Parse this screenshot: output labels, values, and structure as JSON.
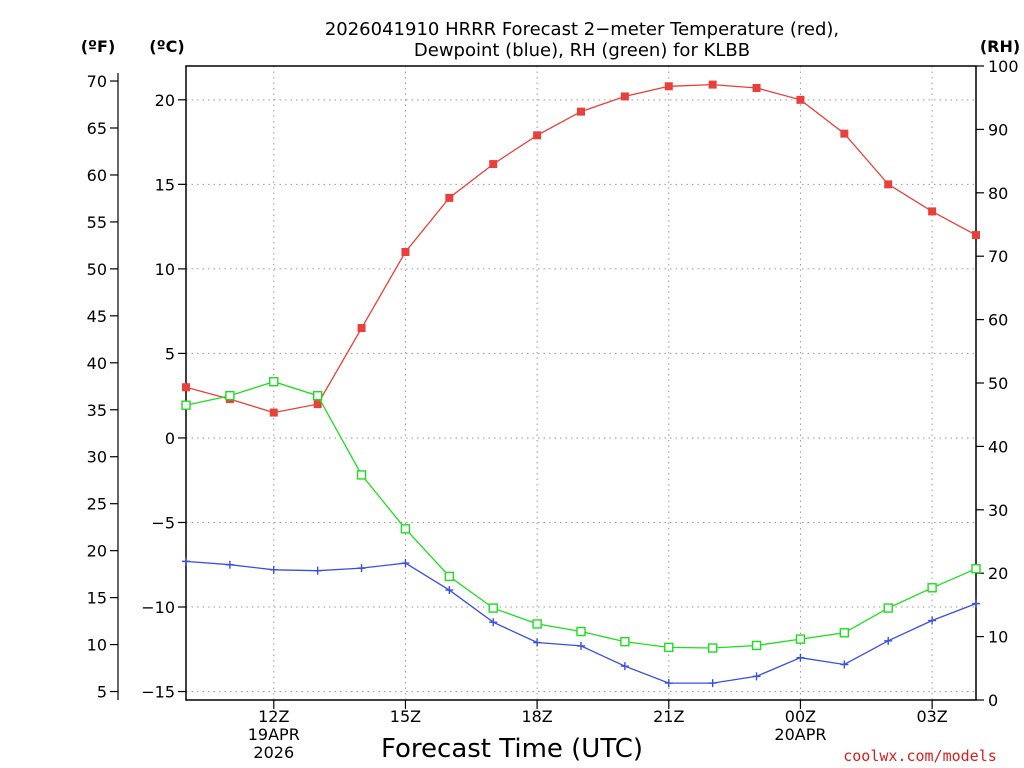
{
  "chart_data": {
    "type": "line",
    "title": "2026041910 HRRR Forecast 2−meter Temperature (red),",
    "subtitle": "Dewpoint (blue), RH (green) for KLBB",
    "xlabel": "Forecast Time (UTC)",
    "credit": "coolwx.com/models",
    "units": {
      "left_f": "(ºF)",
      "left_c": "(ºC)",
      "right": "(RH)"
    },
    "x_hours": [
      10,
      11,
      12,
      13,
      14,
      15,
      16,
      17,
      18,
      19,
      20,
      21,
      22,
      23,
      24,
      25,
      26,
      27,
      28
    ],
    "xlim": [
      10,
      28
    ],
    "x_ticks": [
      {
        "hour": 12,
        "lines": [
          "12Z",
          "19APR",
          "2026"
        ]
      },
      {
        "hour": 15,
        "lines": [
          "15Z"
        ]
      },
      {
        "hour": 18,
        "lines": [
          "18Z"
        ]
      },
      {
        "hour": 21,
        "lines": [
          "21Z"
        ]
      },
      {
        "hour": 24,
        "lines": [
          "00Z",
          "20APR"
        ]
      },
      {
        "hour": 27,
        "lines": [
          "03Z"
        ]
      }
    ],
    "ylim_c": [
      -15.5,
      22
    ],
    "yticks_c": [
      "20",
      "15",
      "10",
      "5",
      "0",
      "−5",
      "−10",
      "−15"
    ],
    "yticks_c_values": [
      20,
      15,
      10,
      5,
      0,
      -5,
      -10,
      -15
    ],
    "yticks_f": [
      "70",
      "65",
      "60",
      "55",
      "50",
      "45",
      "40",
      "35",
      "30",
      "25",
      "20",
      "15",
      "10",
      "5"
    ],
    "yticks_f_values": [
      70,
      65,
      60,
      55,
      50,
      45,
      40,
      35,
      30,
      25,
      20,
      15,
      10,
      5
    ],
    "ylim_rh": [
      0,
      100
    ],
    "yticks_rh": [
      "100",
      "90",
      "80",
      "70",
      "60",
      "50",
      "40",
      "30",
      "20",
      "10",
      "0"
    ],
    "yticks_rh_values": [
      100,
      90,
      80,
      70,
      60,
      50,
      40,
      30,
      20,
      10,
      0
    ],
    "grid": true,
    "series": [
      {
        "name": "2-meter Temperature",
        "axis": "C",
        "color": "#e8403a",
        "marker": "filled-square",
        "values": [
          3.0,
          2.3,
          1.5,
          2.0,
          6.5,
          11.0,
          14.2,
          16.2,
          17.9,
          19.3,
          20.2,
          20.8,
          20.9,
          20.7,
          20.0,
          18.0,
          15.0,
          13.4,
          12.0
        ]
      },
      {
        "name": "Dewpoint",
        "axis": "C",
        "color": "#3a4ee0",
        "marker": "plus",
        "values": [
          -7.3,
          -7.5,
          -7.8,
          -7.85,
          -7.7,
          -7.4,
          -9.0,
          -10.9,
          -12.1,
          -12.3,
          -13.5,
          -14.5,
          -14.5,
          -14.1,
          -13.0,
          -13.4,
          -12.0,
          -10.8,
          -9.8
        ]
      },
      {
        "name": "Relative Humidity",
        "axis": "RH",
        "color": "#1fdc1f",
        "marker": "open-square",
        "values": [
          46.5,
          48.0,
          50.2,
          48.0,
          35.5,
          27.0,
          19.5,
          14.5,
          12.0,
          10.8,
          9.2,
          8.3,
          8.2,
          8.6,
          9.6,
          10.6,
          14.5,
          17.7,
          20.7
        ]
      }
    ]
  }
}
